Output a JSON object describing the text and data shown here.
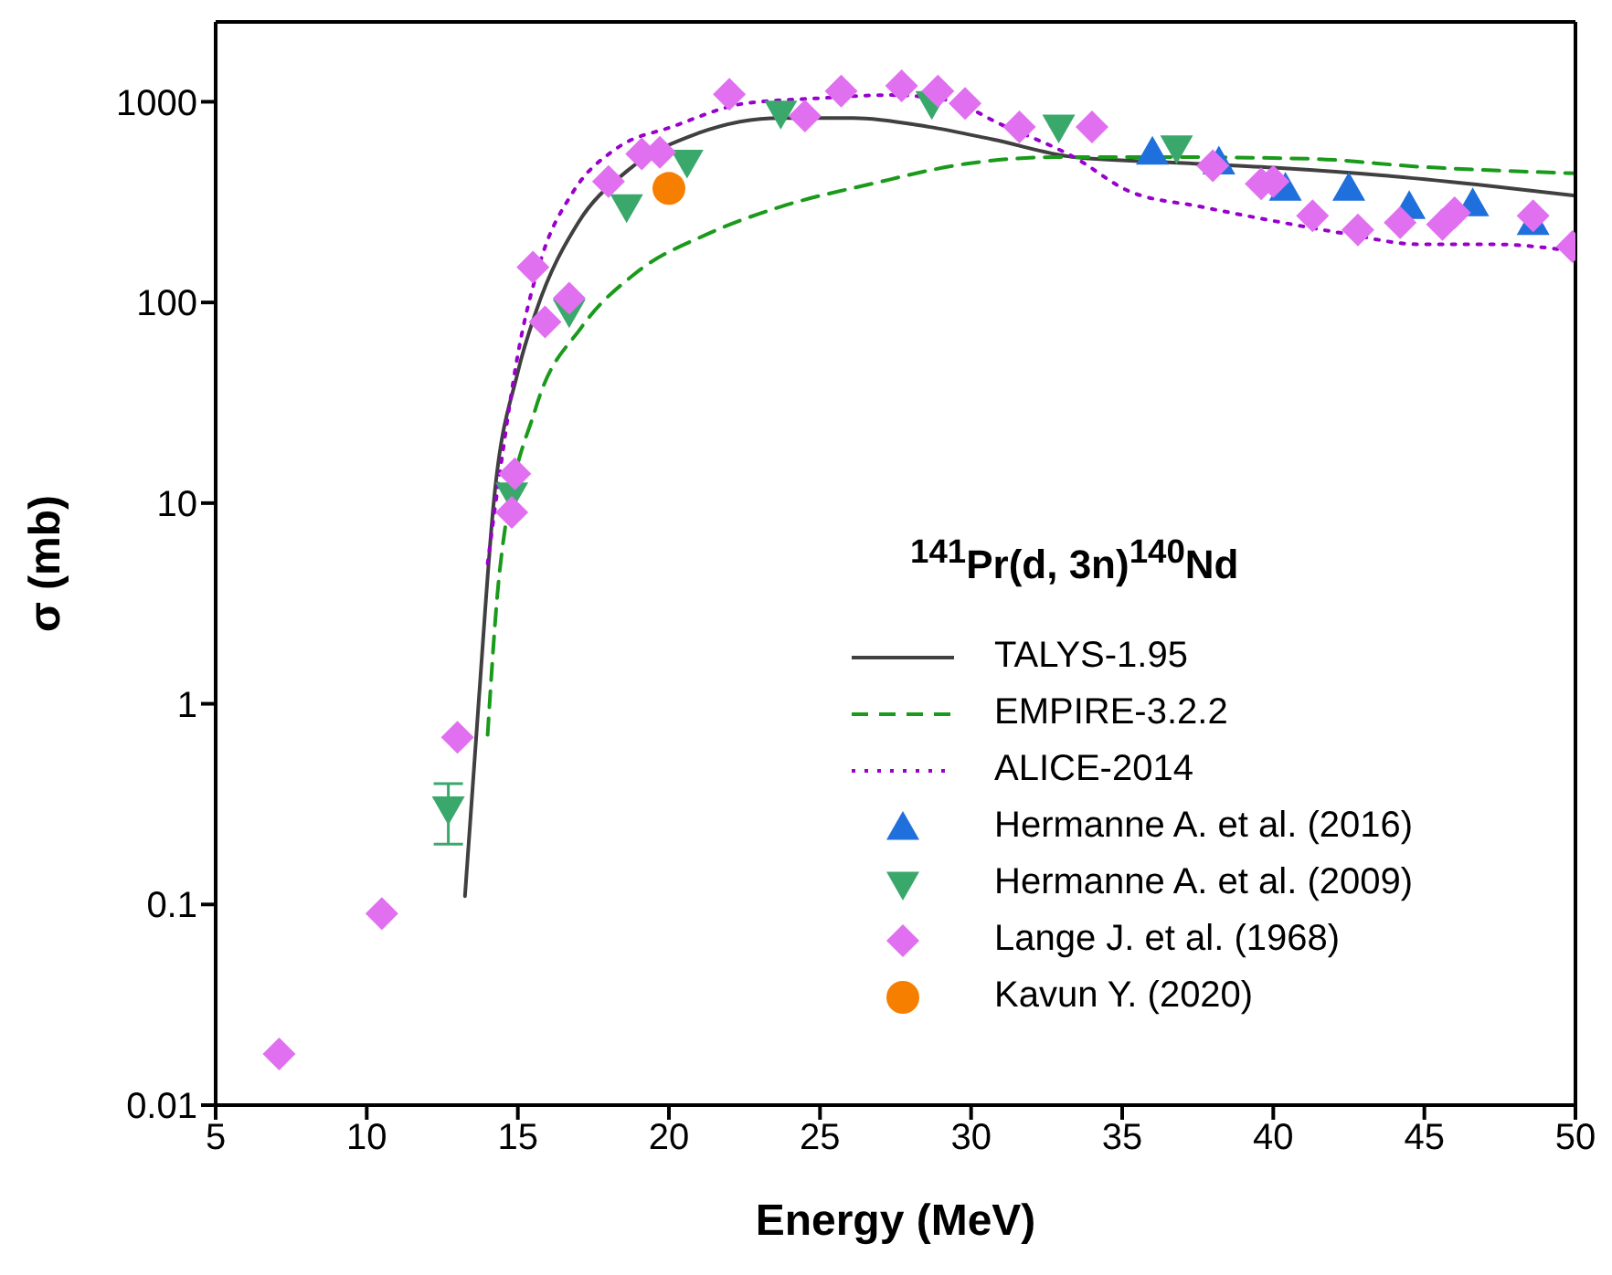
{
  "chart_data": {
    "type": "scatter",
    "xlabel": "Energy (MeV)",
    "ylabel": "σ (mb)",
    "legend_title": "$^{141}$Pr(d, 3n)$^{140}$Nd",
    "log": "y",
    "legend": "bottom right",
    "xlim": [
      5,
      50
    ],
    "xticks": [
      5,
      10,
      15,
      20,
      25,
      30,
      35,
      40,
      45,
      50
    ],
    "ylim": [
      0.01,
      2500
    ],
    "yticks": [
      0.01,
      0.1,
      1,
      10,
      100,
      1000
    ],
    "series": [
      {
        "name": "TALYS-1.95",
        "type": "line",
        "color": "#404040",
        "line_style": "solid",
        "x": [
          13.25,
          13.7,
          14.2,
          15.0,
          15.6,
          17.0,
          18.6,
          21.0,
          23.7,
          26.1,
          28.6,
          30.7,
          33.4,
          36.4,
          40.0,
          43.6,
          47.2,
          50
        ],
        "values": [
          0.11,
          1,
          10,
          45,
          90,
          250,
          450,
          700,
          830,
          830,
          750,
          650,
          530,
          500,
          470,
          430,
          380,
          340
        ]
      },
      {
        "name": "EMPIRE-3.2.2",
        "type": "line",
        "color": "#1a9a1a",
        "line_style": "dashed",
        "x": [
          14.0,
          14.4,
          15.6,
          17.1,
          18.9,
          21.3,
          23.7,
          26.7,
          29.8,
          32.8,
          36.4,
          41.2,
          44.8,
          50
        ],
        "values": [
          0.7,
          4.6,
          30,
          75,
          140,
          220,
          300,
          390,
          490,
          530,
          530,
          520,
          475,
          440
        ]
      },
      {
        "name": "ALICE-2014",
        "type": "line",
        "color": "#9900cc",
        "line_style": "dotted",
        "x": [
          14.0,
          14.4,
          15.0,
          15.8,
          16.8,
          18.3,
          20.1,
          22.5,
          24.9,
          27.3,
          29.2,
          31.0,
          33.4,
          35.2,
          37.6,
          40.0,
          42.4,
          44.8,
          47.2,
          50
        ],
        "values": [
          5,
          14,
          55,
          170,
          350,
          590,
          750,
          980,
          1040,
          1080,
          1020,
          770,
          530,
          360,
          300,
          255,
          220,
          195,
          195,
          180
        ]
      },
      {
        "name": "Hermanne  A. et al. (2016)",
        "color": "#1f6fdc",
        "marker": "triangle",
        "x": [
          36.0,
          38.2,
          40.4,
          42.5,
          44.5,
          46.6,
          48.6
        ],
        "values": [
          560,
          500,
          370,
          370,
          300,
          310,
          250
        ]
      },
      {
        "name": "Hermanne A. et al. (2009)",
        "color": "#3aa86b",
        "marker": "triangle-down",
        "x": [
          12.7,
          14.8,
          16.7,
          18.6,
          20.6,
          23.7,
          28.7,
          32.9,
          36.8
        ],
        "values": [
          0.3,
          11,
          90,
          300,
          500,
          880,
          980,
          750,
          590
        ],
        "errors": [
          [
            0.2,
            0.4
          ],
          null,
          null,
          null,
          null,
          null,
          null,
          null,
          null
        ]
      },
      {
        "name": "Lange J. et al. (1968)",
        "color": "#e070f0",
        "marker": "diamond",
        "x": [
          7.1,
          10.5,
          13.0,
          14.8,
          14.9,
          15.5,
          15.9,
          16.7,
          18.0,
          19.1,
          19.7,
          22.0,
          24.5,
          25.7,
          27.7,
          28.9,
          29.8,
          31.6,
          34.0,
          38.0,
          39.6,
          40.0,
          41.3,
          42.8,
          44.2,
          45.6,
          46.0,
          48.6,
          49.9
        ],
        "values": [
          0.018,
          0.09,
          0.68,
          9,
          14,
          150,
          80,
          105,
          400,
          550,
          560,
          1090,
          850,
          1130,
          1200,
          1130,
          980,
          750,
          750,
          480,
          390,
          400,
          270,
          230,
          250,
          245,
          280,
          270,
          190
        ]
      },
      {
        "name": "Kavun Y. (2020)",
        "color": "#f77f00",
        "marker": "circle",
        "x": [
          20.0
        ],
        "values": [
          370
        ]
      }
    ]
  }
}
